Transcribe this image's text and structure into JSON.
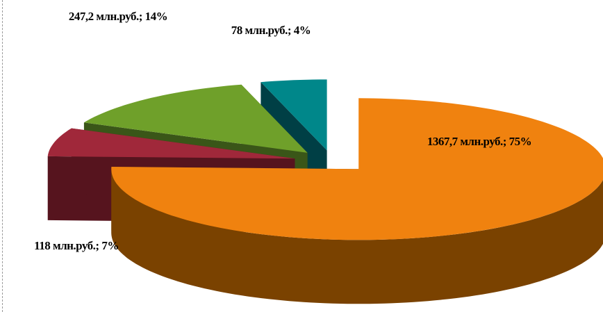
{
  "chart_data": {
    "type": "pie",
    "categories": [
      null,
      null,
      null,
      null
    ],
    "values": [
      1367.7,
      118,
      247.2,
      78
    ],
    "value_labels": [
      "1367,7 млн.руб.; 75%",
      "118 млн.руб.; 7%",
      "247,2 млн.руб.; 14%",
      "78 млн.руб.; 4%"
    ],
    "colors": [
      "#f0820f",
      "#a0283a",
      "#6fa02a",
      "#00878a"
    ],
    "side_colors": [
      "#7a4200",
      "#56141e",
      "#3a5618",
      "#003f45"
    ],
    "start_angle": 0,
    "direction": "clockwise",
    "exploded": true,
    "3d": true
  }
}
